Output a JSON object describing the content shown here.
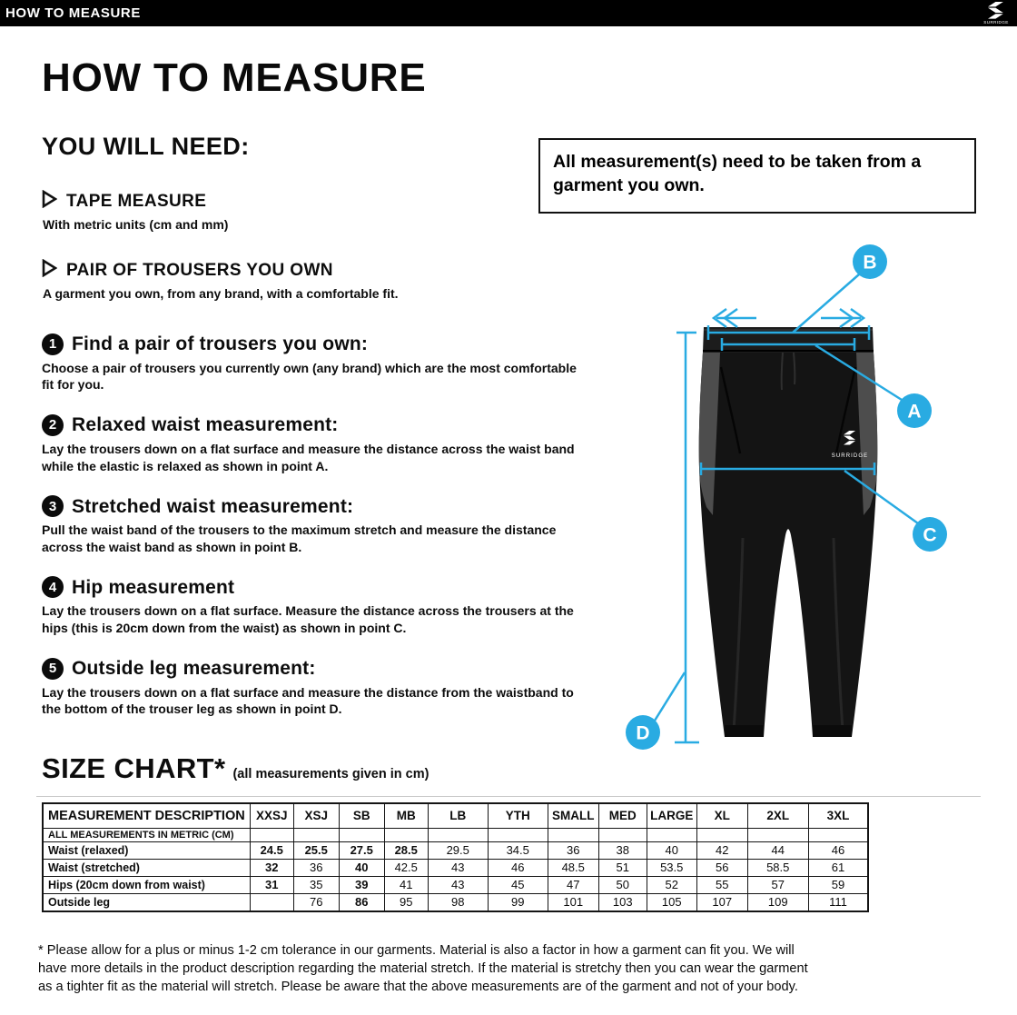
{
  "topbar": {
    "title": "HOW TO MEASURE",
    "brand": "SURRIDGE"
  },
  "page_title": "HOW TO MEASURE",
  "you_will_need": {
    "heading": "YOU WILL NEED:",
    "items": [
      {
        "title": "TAPE MEASURE",
        "description": "With metric units (cm and mm)"
      },
      {
        "title": "PAIR OF TROUSERS YOU OWN",
        "description": "A garment you own, from any brand, with a comfortable fit."
      }
    ]
  },
  "note_box": {
    "text": "All measurement(s) need to be taken from a garment you own."
  },
  "steps": [
    {
      "number": "1",
      "title": "Find a pair of trousers you own:",
      "description": "Choose a pair of trousers you currently own (any brand) which are the most comfortable fit for you."
    },
    {
      "number": "2",
      "title": "Relaxed waist measurement:",
      "description": "Lay the trousers down on a flat surface and measure the distance across the waist band while the elastic is relaxed as shown in point A."
    },
    {
      "number": "3",
      "title": "Stretched waist measurement:",
      "description": "Pull the waist band of the trousers to the maximum stretch and measure the distance across the waist band as shown in point B."
    },
    {
      "number": "4",
      "title": "Hip measurement",
      "description": "Lay the trousers down on a flat surface. Measure the distance across the trousers at the hips (this is 20cm down from the waist)  as shown in point C."
    },
    {
      "number": "5",
      "title": "Outside leg measurement:",
      "description": "Lay the trousers down on a flat surface and measure the distance from the waistband to the bottom of the trouser  leg as shown in point D."
    }
  ],
  "diagram": {
    "accent_color": "#29ABE2",
    "garment_logo": "SURRIDGE",
    "markers": {
      "a": "A",
      "b": "B",
      "c": "C",
      "d": "D"
    }
  },
  "size_chart": {
    "heading": "SIZE CHART*",
    "subheading": "(all measurements given in cm)",
    "table": {
      "header": [
        "MEASUREMENT DESCRIPTION",
        "XXSJ",
        "XSJ",
        "SB",
        "MB",
        "LB",
        "YTH",
        "SMALL",
        "MED",
        "LARGE",
        "XL",
        "2XL",
        "3XL"
      ],
      "metric_row_label": "ALL MEASUREMENTS IN METRIC (CM)",
      "rows": [
        {
          "label": "Waist (relaxed)",
          "values": [
            "24.5",
            "25.5",
            "27.5",
            "28.5",
            "29.5",
            "34.5",
            "36",
            "38",
            "40",
            "42",
            "44",
            "46"
          ],
          "bold": [
            true,
            true,
            true,
            true,
            false,
            false,
            false,
            false,
            false,
            false,
            false,
            false
          ]
        },
        {
          "label": "Waist (stretched)",
          "values": [
            "32",
            "36",
            "40",
            "42.5",
            "43",
            "46",
            "48.5",
            "51",
            "53.5",
            "56",
            "58.5",
            "61"
          ],
          "bold": [
            true,
            false,
            true,
            false,
            false,
            false,
            false,
            false,
            false,
            false,
            false,
            false
          ]
        },
        {
          "label": "Hips (20cm down from waist)",
          "values": [
            "31",
            "35",
            "39",
            "41",
            "43",
            "45",
            "47",
            "50",
            "52",
            "55",
            "57",
            "59"
          ],
          "bold": [
            true,
            false,
            true,
            false,
            false,
            false,
            false,
            false,
            false,
            false,
            false,
            false
          ]
        },
        {
          "label": "Outside leg",
          "values": [
            "",
            "76",
            "86",
            "95",
            "98",
            "99",
            "101",
            "103",
            "105",
            "107",
            "109",
            "111"
          ],
          "bold": [
            false,
            false,
            true,
            false,
            false,
            false,
            false,
            false,
            false,
            false,
            false,
            false
          ]
        }
      ]
    }
  },
  "footnote": "* Please allow for a plus or minus 1-2 cm tolerance in our garments. Material is also a factor in how a garment can fit you. We will have more details in the product description regarding the material stretch.  If the material is stretchy then you can wear the garment as a tighter fit as the material will stretch.  Please be aware that the above measurements are of the garment and not of your body."
}
